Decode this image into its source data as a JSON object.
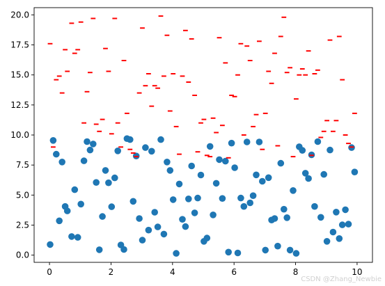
{
  "chart_data": {
    "type": "scatter",
    "title": "",
    "xlabel": "",
    "ylabel": "",
    "xlim": [
      -0.5,
      10.5
    ],
    "ylim": [
      -0.6,
      20.6
    ],
    "grid": false,
    "xticks": [
      0,
      2,
      4,
      6,
      8,
      10
    ],
    "yticks": [
      0.0,
      2.5,
      5.0,
      7.5,
      10.0,
      12.5,
      15.0,
      17.5,
      20.0
    ],
    "xtick_labels": [
      "0",
      "2",
      "4",
      "6",
      "8",
      "10"
    ],
    "ytick_labels": [
      "0.0",
      "2.5",
      "5.0",
      "7.5",
      "10.0",
      "12.5",
      "15.0",
      "17.5",
      "20.0"
    ],
    "series": [
      {
        "marker": "circle",
        "color": "#1f77b4",
        "points": [
          [
            0.02,
            0.88
          ],
          [
            0.12,
            9.55
          ],
          [
            0.22,
            8.4
          ],
          [
            0.32,
            2.86
          ],
          [
            0.41,
            7.75
          ],
          [
            0.51,
            4.05
          ],
          [
            0.58,
            3.68
          ],
          [
            0.72,
            1.55
          ],
          [
            0.82,
            5.45
          ],
          [
            0.92,
            1.48
          ],
          [
            1.02,
            4.25
          ],
          [
            1.12,
            7.85
          ],
          [
            1.22,
            9.45
          ],
          [
            1.32,
            8.75
          ],
          [
            1.42,
            9.25
          ],
          [
            1.52,
            6.05
          ],
          [
            1.62,
            0.45
          ],
          [
            1.72,
            3.22
          ],
          [
            1.82,
            7.05
          ],
          [
            1.92,
            6.02
          ],
          [
            2.02,
            4.03
          ],
          [
            2.12,
            6.43
          ],
          [
            2.22,
            8.68
          ],
          [
            2.32,
            0.85
          ],
          [
            2.42,
            0.47
          ],
          [
            2.52,
            9.7
          ],
          [
            2.62,
            9.62
          ],
          [
            2.72,
            4.48
          ],
          [
            2.82,
            8.25
          ],
          [
            2.92,
            3.05
          ],
          [
            3.02,
            1.25
          ],
          [
            3.12,
            8.95
          ],
          [
            3.22,
            2.08
          ],
          [
            3.32,
            8.65
          ],
          [
            3.42,
            3.57
          ],
          [
            3.52,
            2.35
          ],
          [
            3.62,
            9.62
          ],
          [
            3.72,
            1.75
          ],
          [
            3.82,
            7.75
          ],
          [
            3.92,
            7.05
          ],
          [
            4.02,
            4.62
          ],
          [
            4.12,
            0.15
          ],
          [
            4.22,
            5.92
          ],
          [
            4.32,
            2.98
          ],
          [
            4.42,
            2.38
          ],
          [
            4.52,
            4.68
          ],
          [
            4.62,
            7.42
          ],
          [
            4.72,
            3.52
          ],
          [
            4.82,
            4.75
          ],
          [
            4.92,
            6.67
          ],
          [
            5.02,
            1.15
          ],
          [
            5.12,
            1.42
          ],
          [
            5.22,
            9.05
          ],
          [
            5.32,
            3.35
          ],
          [
            5.42,
            5.98
          ],
          [
            5.52,
            7.95
          ],
          [
            5.62,
            4.72
          ],
          [
            5.72,
            7.82
          ],
          [
            5.82,
            0.25
          ],
          [
            5.92,
            9.32
          ],
          [
            6.02,
            7.28
          ],
          [
            6.12,
            0.18
          ],
          [
            6.22,
            4.75
          ],
          [
            6.32,
            4.05
          ],
          [
            6.42,
            9.42
          ],
          [
            6.52,
            4.35
          ],
          [
            6.62,
            4.95
          ],
          [
            6.72,
            6.68
          ],
          [
            6.82,
            9.42
          ],
          [
            6.92,
            6.15
          ],
          [
            7.02,
            0.42
          ],
          [
            7.12,
            6.45
          ],
          [
            7.22,
            2.92
          ],
          [
            7.32,
            3.05
          ],
          [
            7.42,
            0.75
          ],
          [
            7.52,
            7.65
          ],
          [
            7.62,
            3.82
          ],
          [
            7.72,
            3.12
          ],
          [
            7.82,
            0.42
          ],
          [
            7.92,
            5.38
          ],
          [
            8.02,
            0.15
          ],
          [
            8.12,
            9.02
          ],
          [
            8.22,
            8.72
          ],
          [
            8.32,
            6.82
          ],
          [
            8.42,
            6.38
          ],
          [
            8.52,
            8.35
          ],
          [
            8.62,
            4.05
          ],
          [
            8.72,
            9.45
          ],
          [
            8.82,
            3.15
          ],
          [
            8.92,
            6.72
          ],
          [
            9.02,
            1.15
          ],
          [
            9.12,
            8.75
          ],
          [
            9.22,
            1.92
          ],
          [
            9.32,
            3.58
          ],
          [
            9.42,
            1.38
          ],
          [
            9.52,
            2.52
          ],
          [
            9.62,
            3.78
          ],
          [
            9.72,
            2.58
          ],
          [
            9.82,
            8.95
          ],
          [
            9.92,
            6.92
          ]
        ]
      },
      {
        "marker": "hline",
        "color": "#ff0000",
        "points": [
          [
            0.02,
            17.6
          ],
          [
            0.12,
            9.0
          ],
          [
            0.22,
            14.6
          ],
          [
            0.32,
            14.9
          ],
          [
            0.41,
            13.5
          ],
          [
            0.51,
            17.1
          ],
          [
            0.58,
            15.3
          ],
          [
            0.72,
            19.3
          ],
          [
            0.82,
            16.8
          ],
          [
            0.92,
            17.1
          ],
          [
            1.02,
            19.4
          ],
          [
            1.12,
            11.0
          ],
          [
            1.22,
            13.6
          ],
          [
            1.32,
            15.2
          ],
          [
            1.42,
            19.7
          ],
          [
            1.52,
            10.9
          ],
          [
            1.62,
            10.3
          ],
          [
            1.72,
            11.3
          ],
          [
            1.82,
            17.2
          ],
          [
            1.92,
            15.3
          ],
          [
            2.02,
            10.1
          ],
          [
            2.12,
            19.7
          ],
          [
            2.22,
            11.0
          ],
          [
            2.32,
            9.0
          ],
          [
            2.42,
            16.2
          ],
          [
            2.52,
            11.8
          ],
          [
            2.62,
            8.8
          ],
          [
            2.72,
            8.5
          ],
          [
            2.82,
            8.2
          ],
          [
            2.92,
            13.5
          ],
          [
            3.02,
            18.9
          ],
          [
            3.12,
            14.1
          ],
          [
            3.22,
            15.1
          ],
          [
            3.32,
            12.4
          ],
          [
            3.42,
            14.1
          ],
          [
            3.52,
            13.9
          ],
          [
            3.62,
            19.9
          ],
          [
            3.72,
            14.9
          ],
          [
            3.82,
            18.3
          ],
          [
            3.92,
            12.0
          ],
          [
            4.02,
            15.1
          ],
          [
            4.12,
            10.7
          ],
          [
            4.22,
            8.4
          ],
          [
            4.32,
            14.9
          ],
          [
            4.42,
            18.7
          ],
          [
            4.52,
            14.4
          ],
          [
            4.62,
            18.0
          ],
          [
            4.72,
            13.3
          ],
          [
            4.82,
            8.6
          ],
          [
            4.92,
            11.0
          ],
          [
            5.02,
            11.3
          ],
          [
            5.12,
            8.3
          ],
          [
            5.22,
            8.2
          ],
          [
            5.32,
            11.4
          ],
          [
            5.42,
            10.2
          ],
          [
            5.52,
            18.1
          ],
          [
            5.62,
            10.8
          ],
          [
            5.72,
            16.0
          ],
          [
            5.82,
            8.1
          ],
          [
            5.92,
            13.3
          ],
          [
            6.02,
            13.2
          ],
          [
            6.12,
            15.0
          ],
          [
            6.22,
            17.6
          ],
          [
            6.32,
            10.0
          ],
          [
            6.42,
            17.4
          ],
          [
            6.52,
            16.2
          ],
          [
            6.62,
            10.7
          ],
          [
            6.72,
            11.7
          ],
          [
            6.82,
            17.8
          ],
          [
            6.92,
            8.8
          ],
          [
            7.02,
            11.8
          ],
          [
            7.12,
            15.3
          ],
          [
            7.22,
            14.3
          ],
          [
            7.32,
            16.8
          ],
          [
            7.42,
            9.1
          ],
          [
            7.52,
            18.2
          ],
          [
            7.62,
            19.8
          ],
          [
            7.72,
            15.2
          ],
          [
            7.82,
            15.6
          ],
          [
            7.92,
            8.2
          ],
          [
            8.02,
            13.0
          ],
          [
            8.12,
            15.0
          ],
          [
            8.22,
            15.5
          ],
          [
            8.32,
            15.0
          ],
          [
            8.42,
            17.0
          ],
          [
            8.52,
            8.3
          ],
          [
            8.62,
            15.1
          ],
          [
            8.72,
            15.4
          ],
          [
            8.82,
            9.8
          ],
          [
            8.92,
            10.3
          ],
          [
            9.02,
            11.2
          ],
          [
            9.12,
            17.9
          ],
          [
            9.22,
            10.3
          ],
          [
            9.32,
            11.2
          ],
          [
            9.42,
            18.2
          ],
          [
            9.52,
            14.6
          ],
          [
            9.62,
            10.0
          ],
          [
            9.72,
            9.3
          ],
          [
            9.82,
            9.0
          ],
          [
            9.92,
            11.8
          ]
        ]
      }
    ]
  },
  "watermark": "CSDN @Zhang_Newbie"
}
